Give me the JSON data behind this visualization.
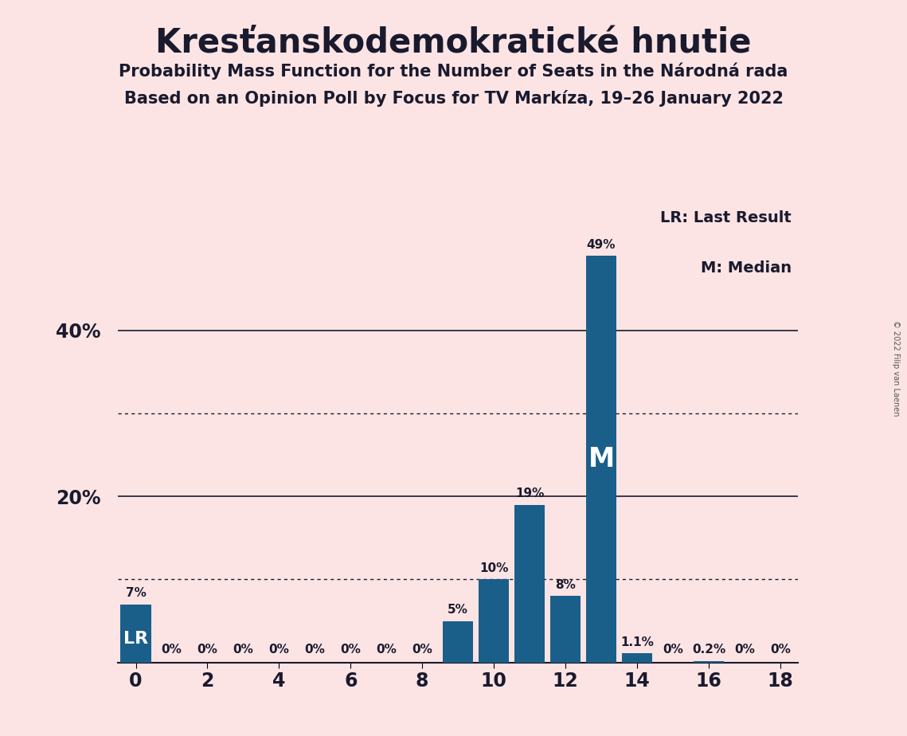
{
  "title": "Kresťanskodemokratické hnutie",
  "subtitle1": "Probability Mass Function for the Number of Seats in the Národná rada",
  "subtitle2": "Based on an Opinion Poll by Focus for TV Markíza, 19–26 January 2022",
  "copyright": "© 2022 Filip van Laenen",
  "seats": [
    0,
    1,
    2,
    3,
    4,
    5,
    6,
    7,
    8,
    9,
    10,
    11,
    12,
    13,
    14,
    15,
    16,
    17,
    18
  ],
  "probabilities": [
    7,
    0,
    0,
    0,
    0,
    0,
    0,
    0,
    0,
    5,
    10,
    19,
    8,
    49,
    1.1,
    0,
    0.2,
    0,
    0
  ],
  "bar_color": "#1a5f8a",
  "background_color": "#fce4e4",
  "lr_seat": 0,
  "median_seat": 13,
  "xlim": [
    -0.5,
    18.5
  ],
  "ylim": [
    0,
    55
  ],
  "solid_yticks": [
    20,
    40
  ],
  "dotted_yticks": [
    10,
    30
  ],
  "ytick_labeled": [
    20,
    40
  ],
  "ytick_labels": [
    "20%",
    "40%"
  ],
  "xticks": [
    0,
    2,
    4,
    6,
    8,
    10,
    12,
    14,
    16,
    18
  ],
  "legend_lr": "LR: Last Result",
  "legend_m": "M: Median"
}
